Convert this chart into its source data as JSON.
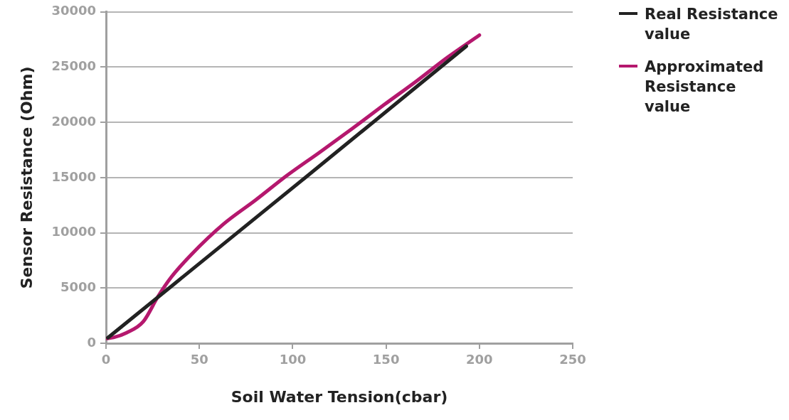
{
  "chart_data": {
    "type": "line",
    "xlabel": "Soil Water Tension(cbar)",
    "ylabel": "Sensor Resistance (Ohm)",
    "xlim": [
      0,
      250
    ],
    "xticks": [
      0,
      50,
      100,
      150,
      200,
      250
    ],
    "ylim": [
      0,
      30000
    ],
    "yticks": [
      0,
      5000,
      10000,
      15000,
      20000,
      25000,
      30000
    ],
    "grid": "y",
    "legend": "top right",
    "marker": "none",
    "line_style": "solid",
    "series": [
      {
        "name": "Real Resistance value",
        "color": "#222222",
        "x": [
          1,
          106,
          193
        ],
        "values": [
          500,
          14900,
          26900
        ]
      },
      {
        "name": "Approximated Resistance value",
        "color": "#b5186e",
        "x": [
          0,
          4,
          11,
          20,
          28,
          35,
          45.5,
          63,
          80,
          97,
          114.5,
          132,
          149,
          166,
          183,
          200
        ],
        "values": [
          430,
          520,
          950,
          1970,
          4280,
          6000,
          8000,
          10800,
          12950,
          15200,
          17300,
          19450,
          21600,
          23700,
          25900,
          27900
        ]
      }
    ]
  }
}
